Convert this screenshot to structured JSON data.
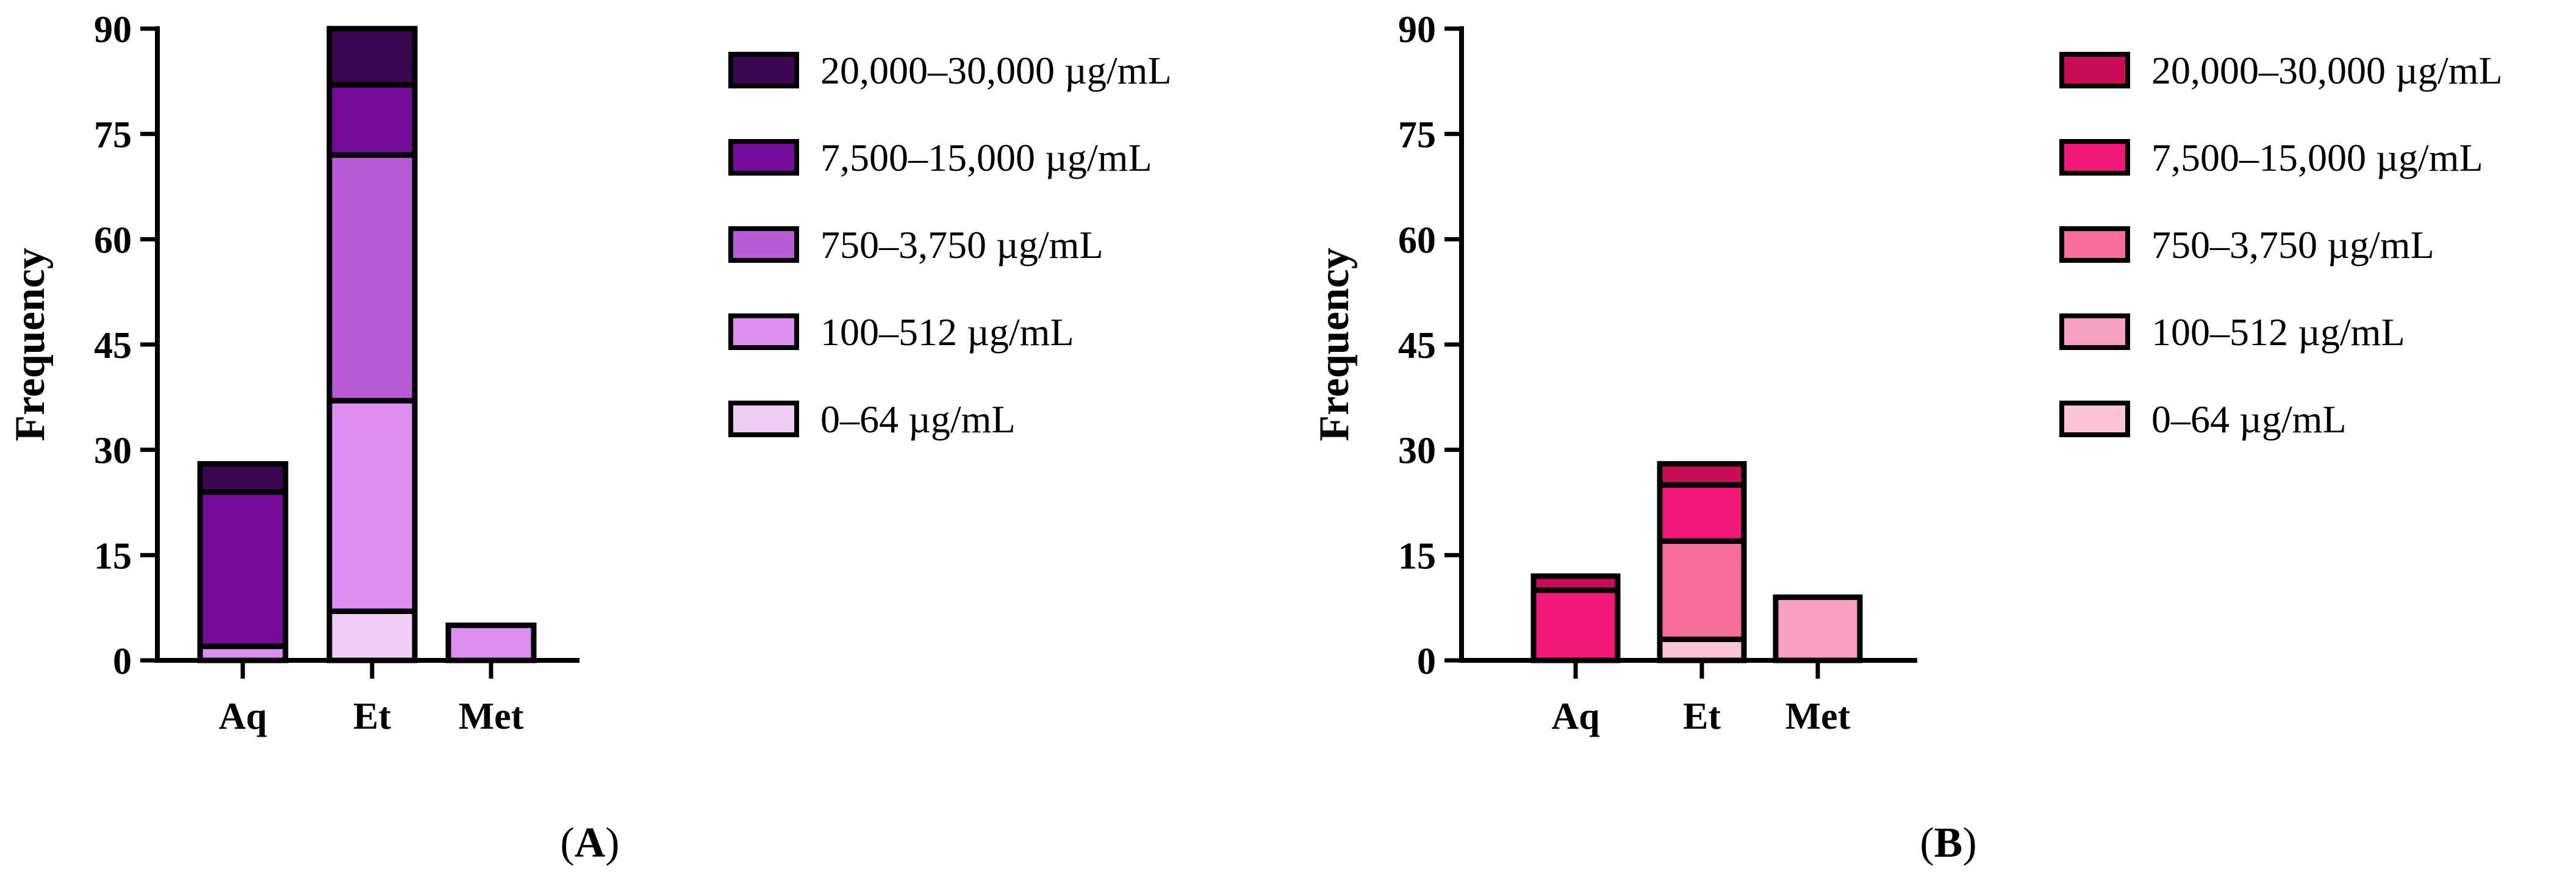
{
  "chart_data": [
    {
      "type": "bar",
      "stacked": true,
      "panel_label": "A",
      "categories": [
        "Aq",
        "Et",
        "Met"
      ],
      "ylabel": "Frequency",
      "ylim": [
        0,
        90
      ],
      "yticks": [
        0,
        15,
        30,
        45,
        60,
        75,
        90
      ],
      "legend": "right",
      "series": [
        {
          "name": "0–64 µg/mL",
          "color": "#f0cdf5",
          "values": [
            0,
            7,
            0
          ]
        },
        {
          "name": "100–512 µg/mL",
          "color": "#dd8ef2",
          "values": [
            2,
            30,
            5
          ]
        },
        {
          "name": "750–3,750 µg/mL",
          "color": "#b95bd6",
          "values": [
            0,
            35,
            0
          ]
        },
        {
          "name": "7,500–15,000 µg/mL",
          "color": "#740b9a",
          "values": [
            22,
            10,
            0
          ]
        },
        {
          "name": "20,000–30,000 µg/mL",
          "color": "#3d0652",
          "values": [
            4,
            8,
            0
          ]
        }
      ]
    },
    {
      "type": "bar",
      "stacked": true,
      "panel_label": "B",
      "categories": [
        "Aq",
        "Et",
        "Met"
      ],
      "ylabel": "Frequency",
      "ylim": [
        0,
        90
      ],
      "yticks": [
        0,
        15,
        30,
        45,
        60,
        75,
        90
      ],
      "legend": "right",
      "series": [
        {
          "name": "0–64 µg/mL",
          "color": "#fbc4d9",
          "values": [
            0,
            3,
            0
          ]
        },
        {
          "name": "100–512 µg/mL",
          "color": "#f79ec3",
          "values": [
            0,
            0,
            9
          ]
        },
        {
          "name": "750–3,750 µg/mL",
          "color": "#f56e99",
          "values": [
            0,
            14,
            0
          ]
        },
        {
          "name": "7,500–15,000 µg/mL",
          "color": "#f0197a",
          "values": [
            10,
            8,
            0
          ]
        },
        {
          "name": "20,000–30,000 µg/mL",
          "color": "#c80f56",
          "values": [
            2,
            3,
            0
          ]
        }
      ]
    }
  ]
}
